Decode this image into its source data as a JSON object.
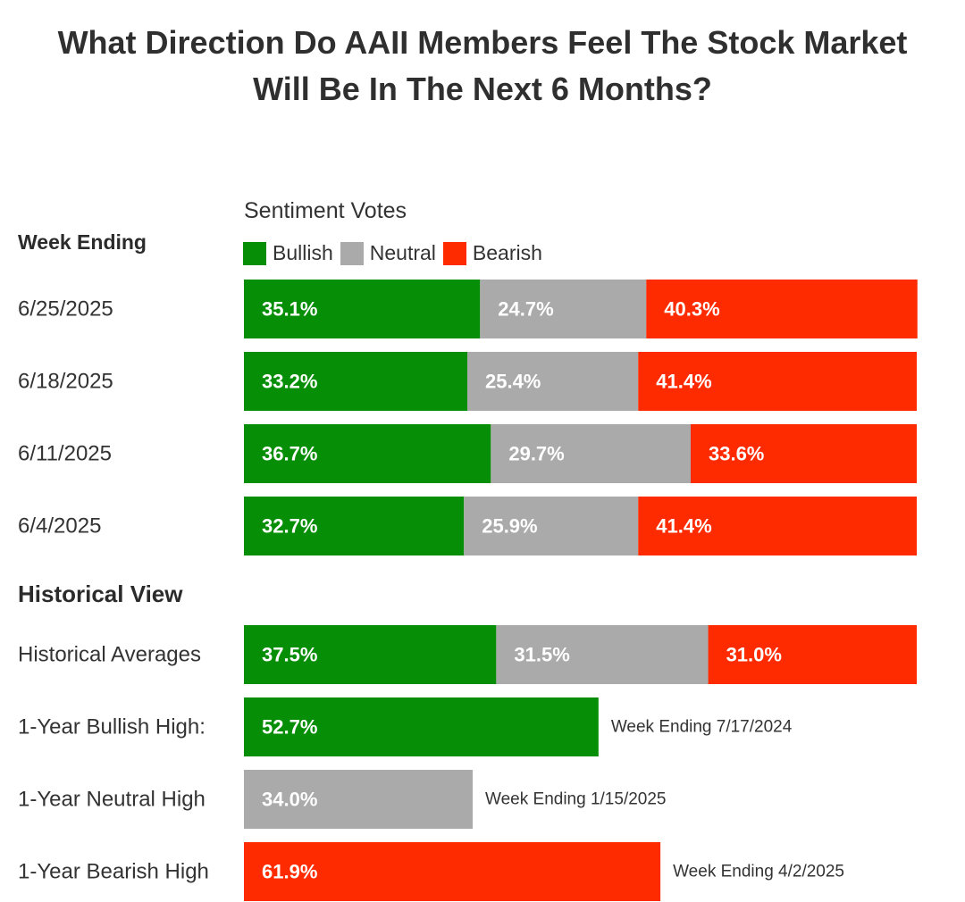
{
  "title_line1": "What Direction Do AAII Members Feel The Stock Market",
  "title_line2": "Will Be In The Next 6 Months?",
  "subtitle": "Sentiment Votes",
  "week_header": "Week Ending",
  "historical_header": "Historical View",
  "colors": {
    "bullish": "#068f06",
    "neutral": "#aaaaaa",
    "bearish": "#ff2b00"
  },
  "legend": [
    {
      "name": "Bullish",
      "color": "#068f06"
    },
    {
      "name": "Neutral",
      "color": "#aaaaaa"
    },
    {
      "name": "Bearish",
      "color": "#ff2b00"
    }
  ],
  "chart_data": {
    "type": "bar",
    "orientation": "horizontal",
    "stacked": true,
    "title": "What Direction Do AAII Members Feel The Stock Market Will Be In The Next 6 Months?",
    "subtitle": "Sentiment Votes",
    "xlim": [
      0,
      100
    ],
    "grid": false,
    "legend_position": "top-left",
    "weekly": {
      "categories": [
        "6/25/2025",
        "6/18/2025",
        "6/11/2025",
        "6/4/2025"
      ],
      "series": [
        {
          "name": "Bullish",
          "values": [
            35.1,
            33.2,
            36.7,
            32.7
          ],
          "labels": [
            "35.1%",
            "33.2%",
            "36.7%",
            "32.7%"
          ]
        },
        {
          "name": "Neutral",
          "values": [
            24.7,
            25.4,
            29.7,
            25.9
          ],
          "labels": [
            "24.7%",
            "25.4%",
            "29.7%",
            "25.9%"
          ]
        },
        {
          "name": "Bearish",
          "values": [
            40.3,
            41.4,
            33.6,
            41.4
          ],
          "labels": [
            "40.3%",
            "41.4%",
            "33.6%",
            "41.4%"
          ]
        }
      ]
    },
    "historical_averages": {
      "category": "Historical Averages",
      "series": [
        {
          "name": "Bullish",
          "value": 37.5,
          "label": "37.5%"
        },
        {
          "name": "Neutral",
          "value": 31.5,
          "label": "31.5%"
        },
        {
          "name": "Bearish",
          "value": 31.0,
          "label": "31.0%"
        }
      ]
    },
    "highs": [
      {
        "category": "1-Year Bullish High:",
        "series": "Bullish",
        "value": 52.7,
        "label": "52.7%",
        "note": "Week Ending 7/17/2024"
      },
      {
        "category": "1-Year Neutral High",
        "series": "Neutral",
        "value": 34.0,
        "label": "34.0%",
        "note": "Week Ending 1/15/2025"
      },
      {
        "category": "1-Year Bearish High",
        "series": "Bearish",
        "value": 61.9,
        "label": "61.9%",
        "note": "Week Ending 4/2/2025"
      }
    ]
  }
}
